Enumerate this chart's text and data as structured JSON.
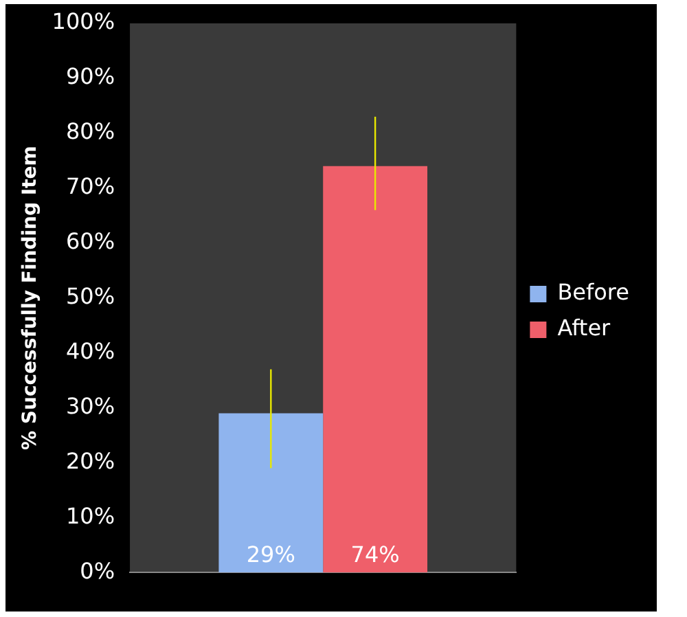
{
  "chart_data": {
    "type": "bar",
    "ylabel": "% Successfully Finding Item",
    "categories": [
      null
    ],
    "series": [
      {
        "name": "Before",
        "color": "#8fb4ee",
        "values": [
          29
        ],
        "errors": [
          [
            19,
            37
          ]
        ],
        "value_labels": [
          "29%"
        ]
      },
      {
        "name": "After",
        "color": "#ef5f6a",
        "values": [
          74
        ],
        "errors": [
          [
            66,
            83
          ]
        ],
        "value_labels": [
          "74%"
        ]
      }
    ],
    "ylim": [
      0,
      100
    ],
    "yticks": [
      {
        "value": 0,
        "label": "0%"
      },
      {
        "value": 10,
        "label": "10%"
      },
      {
        "value": 20,
        "label": "20%"
      },
      {
        "value": 30,
        "label": "30%"
      },
      {
        "value": 40,
        "label": "40%"
      },
      {
        "value": 50,
        "label": "50%"
      },
      {
        "value": 60,
        "label": "60%"
      },
      {
        "value": 70,
        "label": "70%"
      },
      {
        "value": 80,
        "label": "80%"
      },
      {
        "value": 90,
        "label": "90%"
      },
      {
        "value": 100,
        "label": "100%"
      }
    ],
    "legend": "right",
    "grid": false
  }
}
